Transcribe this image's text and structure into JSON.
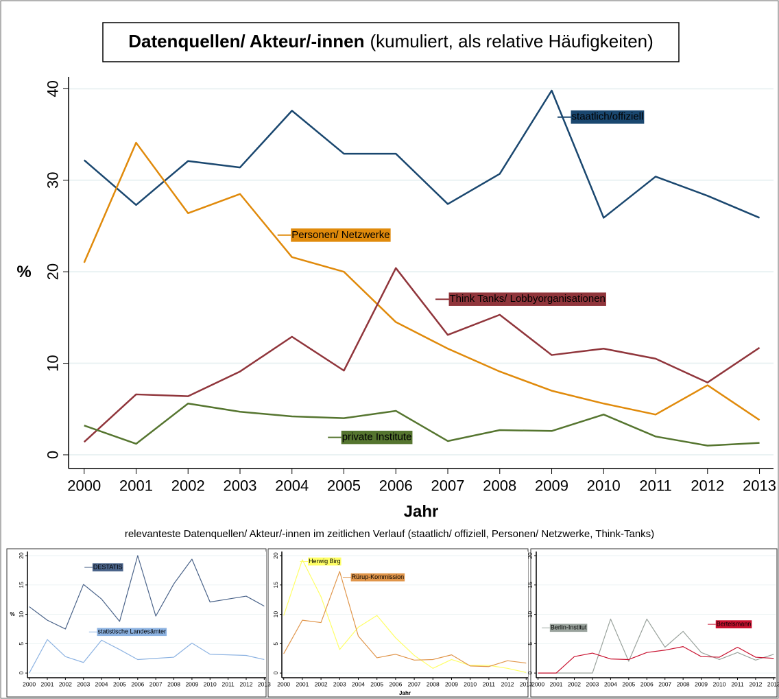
{
  "caption": "relevanteste Datenquellen/ Akteur/-innen im zeitlichen Verlauf (staatlich/ offiziell, Personen/ Netzwerke, Think-Tanks)",
  "chart_data": [
    {
      "type": "line",
      "title": "Datenquellen/ Akteur/-innen",
      "subtitle": "(kumuliert, als relative Häufigkeiten)",
      "x_label": "Jahr",
      "y_label": "%",
      "x": [
        2000,
        2001,
        2002,
        2003,
        2004,
        2005,
        2006,
        2007,
        2008,
        2009,
        2010,
        2011,
        2012,
        2013
      ],
      "xlim": [
        1999.7,
        2013.27
      ],
      "xticks": [
        2000,
        2001,
        2002,
        2003,
        2004,
        2005,
        2006,
        2007,
        2008,
        2009,
        2010,
        2011,
        2012,
        2013
      ],
      "ylim": [
        -1.5,
        41.3
      ],
      "yticks": [
        0,
        10,
        20,
        30,
        40
      ],
      "grid": true,
      "series": [
        {
          "name": "staatlich/offiziell",
          "color": "#1a476f",
          "values": [
            32.2,
            27.3,
            32.1,
            31.4,
            37.6,
            32.9,
            32.9,
            27.4,
            30.7,
            39.8,
            25.9,
            30.4,
            28.3,
            25.9
          ]
        },
        {
          "name": "Personen/ Netzwerke",
          "color": "#e08a0b",
          "values": [
            21.0,
            34.1,
            26.4,
            28.5,
            21.6,
            20.0,
            14.5,
            11.6,
            9.1,
            7.0,
            5.6,
            4.4,
            7.6,
            3.8
          ]
        },
        {
          "name": "Think Tanks/ Lobbyorganisationen",
          "color": "#90353b",
          "values": [
            1.4,
            6.6,
            6.4,
            9.1,
            12.9,
            9.2,
            20.4,
            13.1,
            15.3,
            10.9,
            11.6,
            10.5,
            7.9,
            11.7
          ]
        },
        {
          "name": "private Institute",
          "color": "#55752f",
          "values": [
            3.2,
            1.2,
            5.6,
            4.7,
            4.2,
            4.0,
            4.8,
            1.5,
            2.7,
            2.6,
            4.4,
            2.0,
            1.0,
            1.3
          ]
        }
      ]
    },
    {
      "type": "line",
      "y_label": "%",
      "x": [
        2000,
        2001,
        2002,
        2003,
        2004,
        2005,
        2006,
        2007,
        2008,
        2009,
        2010,
        2011,
        2012,
        2013
      ],
      "xlim": [
        1999.9,
        2013.1
      ],
      "xticks": [
        2000,
        2001,
        2002,
        2003,
        2004,
        2005,
        2006,
        2007,
        2008,
        2009,
        2010,
        2011,
        2012,
        2013
      ],
      "ylim": [
        -0.8,
        20.7
      ],
      "yticks": [
        0,
        5,
        10,
        15,
        20
      ],
      "grid": true,
      "series": [
        {
          "name": "DESTATIS",
          "color": "#4a6389",
          "values": [
            11.3,
            9.0,
            7.5,
            15.1,
            12.6,
            8.8,
            20.0,
            9.7,
            15.2,
            19.4,
            12.1,
            12.6,
            13.1,
            11.4
          ]
        },
        {
          "name": "statistische Landesämter",
          "color": "#8db3e2",
          "values": [
            0,
            5.7,
            2.8,
            1.8,
            5.6,
            4.0,
            2.3,
            2.5,
            2.7,
            5.1,
            3.2,
            3.1,
            3.0,
            2.3
          ]
        }
      ]
    },
    {
      "type": "line",
      "x_label": "Jahr",
      "x": [
        2000,
        2001,
        2002,
        2003,
        2004,
        2005,
        2006,
        2007,
        2008,
        2009,
        2010,
        2011,
        2012,
        2013
      ],
      "xlim": [
        1999.9,
        2013.1
      ],
      "xticks": [
        2000,
        2001,
        2002,
        2003,
        2004,
        2005,
        2006,
        2007,
        2008,
        2009,
        2010,
        2011,
        2012,
        2013
      ],
      "ylim": [
        -0.8,
        20.7
      ],
      "yticks": [
        0,
        5,
        10,
        15,
        20
      ],
      "grid": true,
      "series": [
        {
          "name": "Herwig Birg",
          "color": "#ffff66",
          "values": [
            9.8,
            19.3,
            13.0,
            4.0,
            7.8,
            9.8,
            6.0,
            3.0,
            0.8,
            2.3,
            1.3,
            1.3,
            0.8,
            0.1
          ]
        },
        {
          "name": "Rürup-Kommission",
          "color": "#e0954a",
          "values": [
            3.3,
            9.0,
            8.6,
            17.3,
            6.3,
            2.6,
            3.2,
            2.2,
            2.3,
            3.1,
            1.2,
            1.1,
            2.1,
            1.7
          ]
        }
      ]
    },
    {
      "type": "line",
      "x": [
        2000,
        2001,
        2002,
        2003,
        2004,
        2005,
        2006,
        2007,
        2008,
        2009,
        2010,
        2011,
        2012,
        2013
      ],
      "xlim": [
        1999.9,
        2013.1
      ],
      "xticks": [
        2000,
        2001,
        2002,
        2003,
        2004,
        2005,
        2006,
        2007,
        2008,
        2009,
        2010,
        2011,
        2012,
        2013
      ],
      "ylim": [
        -0.8,
        20.7
      ],
      "yticks": [
        0,
        5,
        10,
        15,
        20
      ],
      "grid": true,
      "series": [
        {
          "name": "Berlin-Institut",
          "color": "#9aa39d",
          "values": [
            0,
            0,
            0,
            0,
            9.2,
            2.0,
            9.2,
            4.4,
            7.1,
            3.5,
            2.3,
            3.5,
            2.2,
            3.2
          ]
        },
        {
          "name": "Bertelsmann",
          "color": "#c8102e",
          "values": [
            0,
            0,
            2.8,
            3.4,
            2.4,
            2.3,
            3.5,
            3.9,
            4.5,
            2.8,
            2.7,
            4.4,
            2.7,
            2.5
          ]
        }
      ]
    }
  ]
}
